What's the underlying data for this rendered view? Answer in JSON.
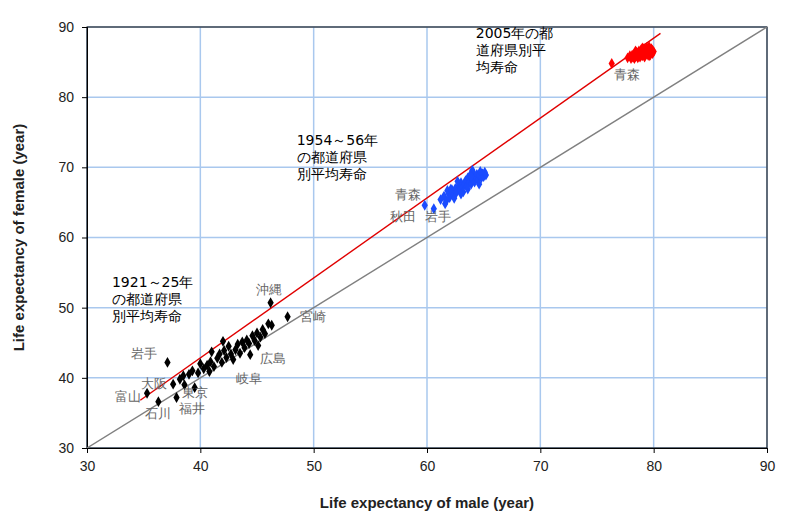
{
  "chart_data": {
    "type": "scatter",
    "xlabel": "Life expectancy of male (year)",
    "ylabel": "Life expectancy of female (year)",
    "xlim": [
      30,
      90
    ],
    "ylim": [
      30,
      90
    ],
    "xticks": [
      30,
      40,
      50,
      60,
      70,
      80,
      90
    ],
    "yticks": [
      30,
      40,
      50,
      60,
      70,
      80,
      90
    ],
    "grid": true,
    "series": [
      {
        "type": "scatter",
        "color": "#000000",
        "marker": "diamond",
        "x": [
          46.2,
          47.7,
          45.1,
          44.4,
          37.1,
          37.6,
          35.3,
          38.6,
          36.3,
          37.9,
          38.2,
          38.5,
          39.0,
          39.3,
          39.8,
          40.0,
          40.3,
          40.6,
          40.9,
          41.2,
          41.5,
          41.7,
          41.9,
          42.1,
          42.3,
          42.5,
          42.7,
          42.9,
          43.1,
          43.3,
          43.5,
          43.7,
          43.9,
          44.1,
          44.3,
          44.6,
          44.8,
          45.0,
          45.3,
          45.5,
          45.7,
          46.0,
          46.3,
          39.5,
          40.8,
          42.0,
          41.0
        ],
        "values": [
          50.7,
          48.7,
          44.6,
          43.3,
          42.2,
          39.1,
          37.8,
          39.0,
          36.6,
          37.2,
          39.8,
          40.3,
          40.5,
          41.0,
          40.7,
          42.0,
          41.3,
          41.8,
          42.3,
          41.6,
          42.8,
          43.4,
          42.2,
          43.9,
          42.9,
          44.5,
          43.4,
          42.6,
          44.0,
          44.8,
          43.5,
          45.1,
          44.3,
          45.4,
          44.9,
          46.0,
          45.3,
          46.4,
          45.8,
          46.9,
          46.3,
          47.7,
          47.5,
          38.6,
          40.9,
          45.2,
          43.7
        ],
        "labels": [
          "沖縄",
          "宮崎",
          "広島",
          "岐阜",
          "岩手",
          "大阪",
          "富山",
          "東京",
          "石川",
          "福井",
          null,
          null,
          null,
          null,
          null,
          null,
          null,
          null,
          null,
          null,
          null,
          null,
          null,
          null,
          null,
          null,
          null,
          null,
          null,
          null,
          null,
          null,
          null,
          null,
          null,
          null,
          null,
          null,
          null,
          null,
          null,
          null,
          null,
          null,
          null,
          null,
          null
        ]
      },
      {
        "type": "scatter",
        "color": "#1a4cff",
        "marker": "diamond",
        "x": [
          59.8,
          60.6,
          61.6,
          61.2,
          61.5,
          61.7,
          61.9,
          62.0,
          62.2,
          62.3,
          62.5,
          62.6,
          62.8,
          62.9,
          63.0,
          63.1,
          63.2,
          63.3,
          63.4,
          63.5,
          63.6,
          63.7,
          63.8,
          63.9,
          64.0,
          64.1,
          64.2,
          64.3,
          64.4,
          64.5,
          64.6,
          64.7,
          64.8,
          64.9,
          65.0,
          65.1,
          65.2,
          62.4,
          63.6,
          62.7,
          64.0,
          61.8,
          63.0,
          64.6,
          62.1,
          63.9
        ],
        "values": [
          64.6,
          64.1,
          64.8,
          65.4,
          65.9,
          65.2,
          66.3,
          65.7,
          66.8,
          66.1,
          67.0,
          66.4,
          67.4,
          66.8,
          67.8,
          67.1,
          66.5,
          67.6,
          68.1,
          67.3,
          68.5,
          67.8,
          68.9,
          67.6,
          68.3,
          69.2,
          67.9,
          68.6,
          69.0,
          68.2,
          68.8,
          69.4,
          68.5,
          69.1,
          68.7,
          69.3,
          68.9,
          65.6,
          66.9,
          68.0,
          69.6,
          66.7,
          66.2,
          67.6,
          66.9,
          68.7
        ],
        "labels": [
          "青森",
          "秋田",
          "岩手",
          null,
          null,
          null,
          null,
          null,
          null,
          null,
          null,
          null,
          null,
          null,
          null,
          null,
          null,
          null,
          null,
          null,
          null,
          null,
          null,
          null,
          null,
          null,
          null,
          null,
          null,
          null,
          null,
          null,
          null,
          null,
          null,
          null,
          null,
          null,
          null,
          null,
          null,
          null,
          null,
          null,
          null,
          null
        ]
      },
      {
        "type": "scatter",
        "color": "#ff0000",
        "marker": "diamond",
        "x": [
          76.3,
          77.7,
          77.9,
          78.0,
          78.1,
          78.2,
          78.3,
          78.4,
          78.5,
          78.5,
          78.6,
          78.7,
          78.7,
          78.8,
          78.9,
          78.9,
          79.0,
          79.0,
          79.1,
          79.1,
          79.2,
          79.2,
          79.3,
          79.3,
          79.4,
          79.4,
          79.5,
          79.5,
          79.6,
          79.6,
          79.7,
          79.7,
          79.8,
          79.8,
          79.9,
          78.4,
          78.6,
          79.0,
          79.2,
          78.1,
          78.8,
          79.5,
          79.9,
          78.3,
          79.3,
          79.6,
          80.0
        ],
        "values": [
          84.8,
          85.6,
          85.9,
          85.5,
          86.0,
          85.7,
          86.2,
          85.8,
          86.4,
          85.9,
          86.1,
          86.6,
          85.8,
          86.3,
          86.8,
          86.0,
          86.5,
          85.9,
          86.2,
          86.9,
          86.4,
          85.7,
          86.7,
          86.1,
          87.1,
          86.5,
          86.0,
          86.8,
          86.3,
          87.2,
          86.6,
          86.0,
          86.9,
          86.4,
          86.7,
          86.6,
          85.6,
          87.0,
          86.9,
          85.7,
          85.7,
          86.3,
          86.2,
          85.5,
          86.4,
          85.9,
          86.5
        ],
        "labels": [
          "青森",
          null,
          null,
          null,
          null,
          null,
          null,
          null,
          null,
          null,
          null,
          null,
          null,
          null,
          null,
          null,
          null,
          null,
          null,
          null,
          null,
          null,
          null,
          null,
          null,
          null,
          null,
          null,
          null,
          null,
          null,
          null,
          null,
          null,
          null,
          null,
          null,
          null,
          null,
          null,
          null,
          null,
          null,
          null,
          null,
          null,
          null
        ]
      },
      {
        "type": "line",
        "color": "#e00000",
        "line_style": "solid",
        "x": [
          34.7,
          80.6
        ],
        "values": [
          36.8,
          89.1
        ]
      },
      {
        "type": "line",
        "color": "#808080",
        "line_style": "solid",
        "x": [
          30,
          90
        ],
        "values": [
          30,
          90
        ]
      }
    ],
    "annotations": [
      {
        "lines": [
          "2005年の都",
          "道府県別平",
          "均寿命"
        ],
        "x": 64.3,
        "y": 88.4
      },
      {
        "lines": [
          "1954～56年",
          "の都道府県",
          "別平均寿命"
        ],
        "x": 48.5,
        "y": 73.2
      },
      {
        "lines": [
          "1921～25年",
          "の都道府県",
          "別平均寿命"
        ],
        "x": 32.2,
        "y": 52.9
      }
    ]
  }
}
